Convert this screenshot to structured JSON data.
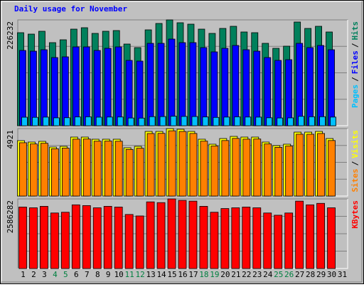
{
  "chart_data": [
    {
      "type": "bar",
      "title": "Daily usage for November",
      "ylim": [
        0,
        226232
      ],
      "grid": true,
      "legend_separator": "/",
      "series": [
        {
          "name": "Hits",
          "color": "#00805c",
          "values": [
            198900,
            195860,
            201940,
            177640,
            183720,
            206490,
            209530,
            197380,
            201940,
            203460,
            174610,
            167010,
            204970,
            218640,
            226232,
            220160,
            217120,
            206490,
            197380,
            208010,
            212560,
            200420,
            198900,
            176130,
            165500,
            170050,
            221680,
            208010,
            212560,
            200420,
            null
          ]
        },
        {
          "name": "Files",
          "color": "#0000ff",
          "values": [
            160940,
            159420,
            162460,
            145760,
            147280,
            168530,
            168530,
            160940,
            165500,
            168530,
            139680,
            138170,
            176130,
            176130,
            185230,
            177640,
            177640,
            167010,
            157900,
            165500,
            171570,
            162460,
            159420,
            145760,
            139680,
            141200,
            176130,
            167010,
            171570,
            162460,
            null
          ]
        },
        {
          "name": "Pages",
          "color": "#00c0ff",
          "values": [
            18200,
            17950,
            18400,
            16900,
            17100,
            18800,
            19100,
            18300,
            18600,
            18700,
            16500,
            16300,
            19400,
            19600,
            20400,
            19900,
            19700,
            18800,
            17800,
            18500,
            19000,
            18600,
            18400,
            17000,
            16600,
            16800,
            20100,
            19200,
            19300,
            18500,
            null
          ]
        }
      ]
    },
    {
      "type": "bar",
      "ylim": [
        0,
        4921
      ],
      "grid": true,
      "legend_separator": "/",
      "series": [
        {
          "name": "Visits",
          "color": "#ffff00",
          "values": [
            4041,
            3937,
            3989,
            3574,
            3626,
            4300,
            4300,
            4144,
            4144,
            4144,
            3522,
            3626,
            4714,
            4714,
            4921,
            4870,
            4714,
            4144,
            3781,
            4196,
            4351,
            4300,
            4300,
            3937,
            3678,
            3781,
            4662,
            4662,
            4714,
            4196,
            null
          ]
        },
        {
          "name": "Sites",
          "color": "#ff8000",
          "values": [
            3890,
            3802,
            3851,
            3450,
            3498,
            4152,
            4160,
            4003,
            4010,
            3998,
            3401,
            3489,
            4561,
            4572,
            4760,
            4712,
            4566,
            4005,
            3650,
            4049,
            4205,
            4151,
            4160,
            3801,
            3552,
            3649,
            4510,
            4508,
            4563,
            4050,
            null
          ]
        }
      ]
    },
    {
      "type": "bar",
      "ylim": [
        0,
        2586282
      ],
      "grid": true,
      "series": [
        {
          "name": "KBytes",
          "color": "#ff0000",
          "values": [
            2283700,
            2256150,
            2311180,
            2063550,
            2091060,
            2366200,
            2338690,
            2256150,
            2311180,
            2283700,
            2008520,
            1953490,
            2476260,
            2448750,
            2586282,
            2531290,
            2503770,
            2311180,
            2091060,
            2228630,
            2256150,
            2283700,
            2256150,
            2063550,
            1981000,
            2063550,
            2503770,
            2366200,
            2421230,
            2256150,
            null
          ]
        }
      ],
      "categories": [
        "1",
        "2",
        "3",
        "4",
        "5",
        "6",
        "7",
        "8",
        "9",
        "10",
        "11",
        "12",
        "13",
        "14",
        "15",
        "16",
        "17",
        "18",
        "19",
        "20",
        "21",
        "22",
        "23",
        "24",
        "25",
        "26",
        "27",
        "28",
        "29",
        "30",
        "31"
      ],
      "category_colors": [
        "#000000",
        "#000000",
        "#000000",
        "#008040",
        "#008040",
        "#000000",
        "#000000",
        "#000000",
        "#000000",
        "#000000",
        "#008040",
        "#008040",
        "#000000",
        "#000000",
        "#000000",
        "#000000",
        "#000000",
        "#008040",
        "#008040",
        "#000000",
        "#000000",
        "#000000",
        "#000000",
        "#000000",
        "#008040",
        "#008040",
        "#000000",
        "#000000",
        "#000000",
        "#000000",
        "#000000"
      ]
    }
  ]
}
